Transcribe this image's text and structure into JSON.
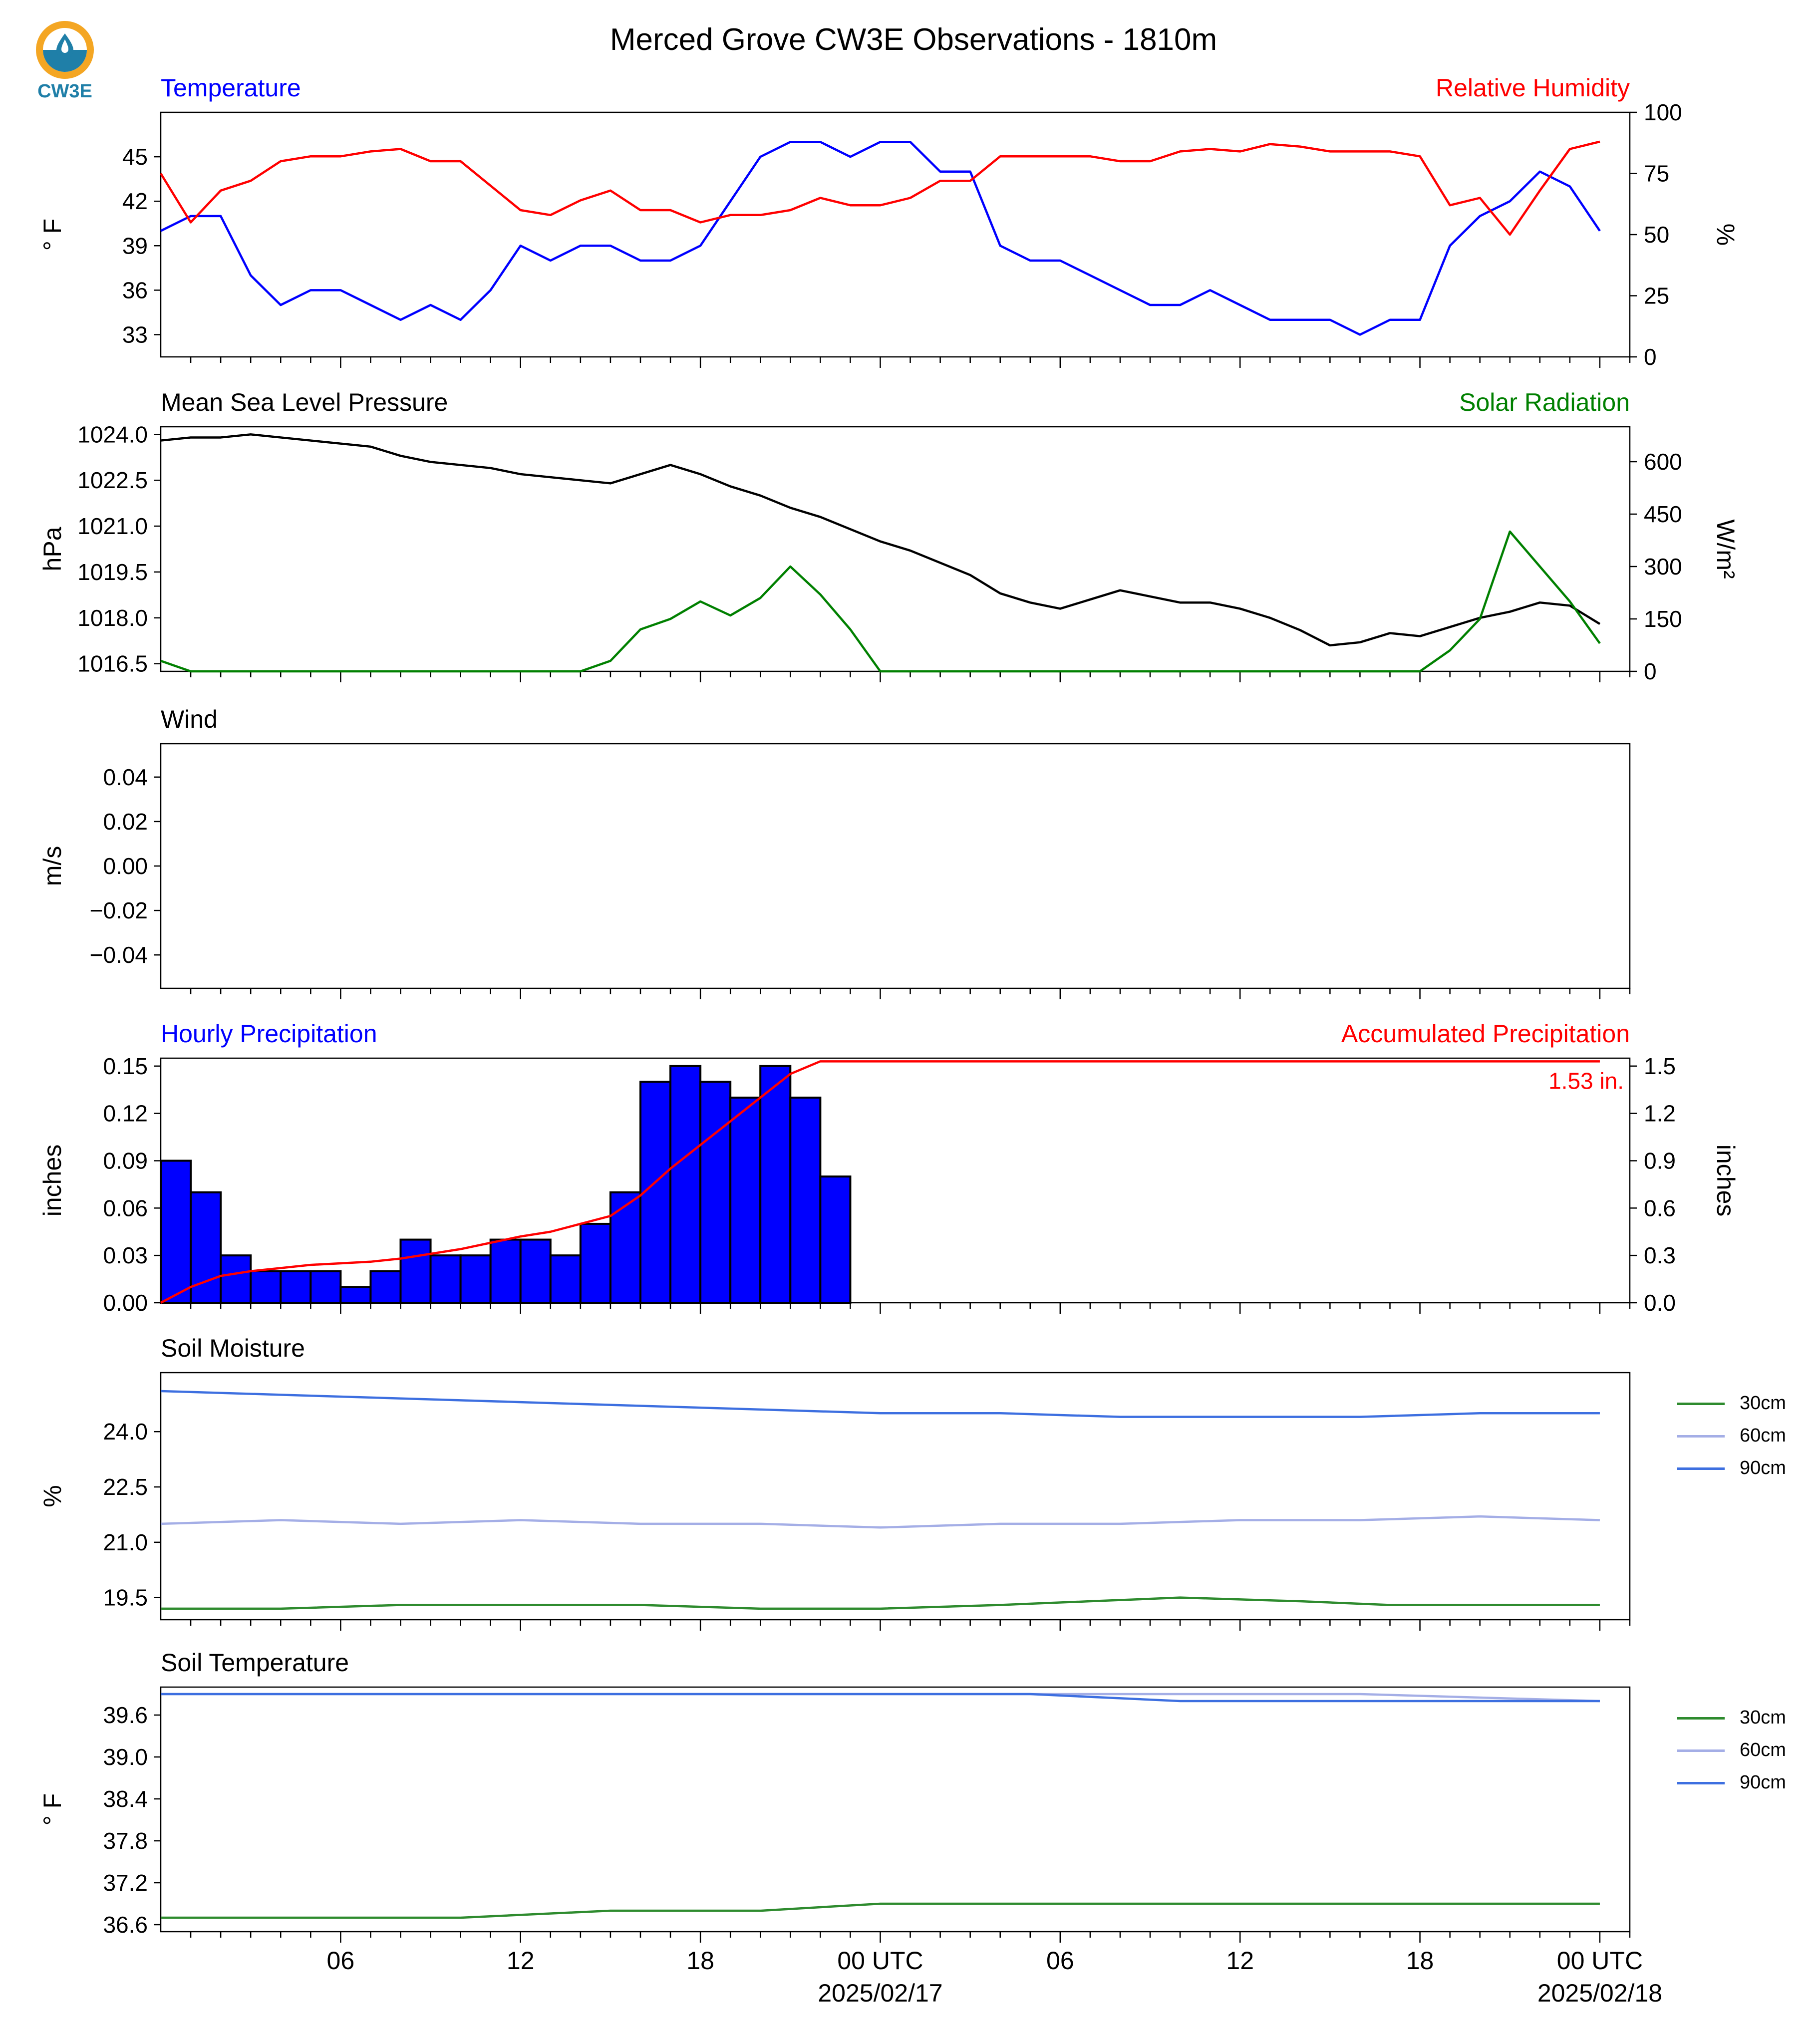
{
  "title": "Merced Grove CW3E Observations - 1810m",
  "logo": {
    "text": "CW3E",
    "icon": "water-drop-sun-icon",
    "colors": {
      "sun": "#f4a623",
      "water": "#1f7fa8"
    }
  },
  "colors": {
    "temperature": "#0000ff",
    "humidity": "#ff0000",
    "pressure": "#000000",
    "solar": "#008000",
    "bars": "#0000ff",
    "accum": "#ff0000",
    "soil30": "#2e8b2e",
    "soil60": "#a4aee6",
    "soil90": "#3d6fe0"
  },
  "x_axis": {
    "tick_labels": [
      "06",
      "12",
      "18",
      "00 UTC",
      "06",
      "12",
      "18",
      "00 UTC"
    ],
    "date_labels": [
      "2025/02/17",
      "2025/02/18"
    ]
  },
  "legend": [
    {
      "label": "30cm",
      "color": "#2e8b2e"
    },
    {
      "label": "60cm",
      "color": "#a4aee6"
    },
    {
      "label": "90cm",
      "color": "#3d6fe0"
    }
  ],
  "chart_data": [
    {
      "type": "line",
      "left_title": "Temperature",
      "right_title": "Relative Humidity",
      "ylabel": "° F",
      "ylabel_right": "%",
      "ylim": [
        31.5,
        48
      ],
      "ylim_right": [
        0,
        100
      ],
      "yticks": [
        "33",
        "36",
        "39",
        "42",
        "45"
      ],
      "yticks_right": [
        "0",
        "25",
        "50",
        "75",
        "100"
      ],
      "series": [
        {
          "name": "Temperature",
          "axis": "left",
          "color": "#0000ff",
          "x": [
            0,
            1,
            2,
            3,
            4,
            5,
            6,
            7,
            8,
            9,
            10,
            11,
            12,
            13,
            14,
            15,
            16,
            17,
            18,
            19,
            20,
            21,
            22,
            23,
            24,
            25,
            26,
            27,
            28,
            29,
            30,
            31,
            32,
            33,
            34,
            35,
            36,
            37,
            38,
            39,
            40,
            41,
            42,
            43,
            44,
            45,
            46,
            47,
            48
          ],
          "y": [
            40,
            41,
            41,
            37,
            35,
            36,
            36,
            35,
            34,
            35,
            34,
            36,
            39,
            38,
            39,
            39,
            38,
            38,
            39,
            42,
            45,
            46,
            46,
            45,
            46,
            46,
            44,
            44,
            39,
            38,
            38,
            37,
            36,
            35,
            35,
            36,
            35,
            34,
            34,
            34,
            33,
            34,
            34,
            39,
            41,
            42,
            44,
            43,
            40
          ]
        },
        {
          "name": "Relative Humidity",
          "axis": "right",
          "color": "#ff0000",
          "x": [
            0,
            1,
            2,
            3,
            4,
            5,
            6,
            7,
            8,
            9,
            10,
            11,
            12,
            13,
            14,
            15,
            16,
            17,
            18,
            19,
            20,
            21,
            22,
            23,
            24,
            25,
            26,
            27,
            28,
            29,
            30,
            31,
            32,
            33,
            34,
            35,
            36,
            37,
            38,
            39,
            40,
            41,
            42,
            43,
            44,
            45,
            46,
            47,
            48
          ],
          "y": [
            75,
            55,
            68,
            72,
            80,
            82,
            82,
            84,
            85,
            80,
            80,
            70,
            60,
            58,
            64,
            68,
            60,
            60,
            55,
            58,
            58,
            60,
            65,
            62,
            62,
            65,
            72,
            72,
            82,
            82,
            82,
            82,
            80,
            80,
            84,
            85,
            84,
            87,
            86,
            84,
            84,
            84,
            82,
            62,
            65,
            50,
            68,
            85,
            88
          ]
        }
      ]
    },
    {
      "type": "line",
      "left_title": "Mean Sea Level Pressure",
      "right_title": "Solar Radiation",
      "ylabel": "hPa",
      "ylabel_right": "W/m²",
      "ylim": [
        1016.25,
        1024.25
      ],
      "ylim_right": [
        0,
        700
      ],
      "yticks": [
        "1016.5",
        "1018.0",
        "1019.5",
        "1021.0",
        "1022.5",
        "1024.0"
      ],
      "yticks_right": [
        "0",
        "150",
        "300",
        "450",
        "600"
      ],
      "series": [
        {
          "name": "Mean Sea Level Pressure",
          "axis": "left",
          "color": "#000000",
          "x": [
            0,
            1,
            2,
            3,
            4,
            5,
            6,
            7,
            8,
            9,
            10,
            11,
            12,
            13,
            14,
            15,
            16,
            17,
            18,
            19,
            20,
            21,
            22,
            23,
            24,
            25,
            26,
            27,
            28,
            29,
            30,
            31,
            32,
            33,
            34,
            35,
            36,
            37,
            38,
            39,
            40,
            41,
            42,
            43,
            44,
            45,
            46,
            47,
            48
          ],
          "y": [
            1023.8,
            1023.9,
            1023.9,
            1024.0,
            1023.9,
            1023.8,
            1023.7,
            1023.6,
            1023.3,
            1023.1,
            1023.0,
            1022.9,
            1022.7,
            1022.6,
            1022.5,
            1022.4,
            1022.7,
            1023.0,
            1022.7,
            1022.3,
            1022.0,
            1021.6,
            1021.3,
            1020.9,
            1020.5,
            1020.2,
            1019.8,
            1019.4,
            1018.8,
            1018.5,
            1018.3,
            1018.6,
            1018.9,
            1018.7,
            1018.5,
            1018.5,
            1018.3,
            1018.0,
            1017.6,
            1017.1,
            1017.2,
            1017.5,
            1017.4,
            1017.7,
            1018.0,
            1018.2,
            1018.5,
            1018.4,
            1017.8
          ]
        },
        {
          "name": "Solar Radiation",
          "axis": "right",
          "color": "#008000",
          "x": [
            0,
            1,
            2,
            3,
            4,
            5,
            6,
            7,
            8,
            9,
            10,
            11,
            12,
            13,
            14,
            15,
            16,
            17,
            18,
            19,
            20,
            21,
            22,
            23,
            24,
            25,
            26,
            27,
            28,
            29,
            30,
            31,
            32,
            33,
            34,
            35,
            36,
            37,
            38,
            39,
            40,
            41,
            42,
            43,
            44,
            45,
            46,
            47,
            48
          ],
          "y": [
            30,
            0,
            0,
            0,
            0,
            0,
            0,
            0,
            0,
            0,
            0,
            0,
            0,
            0,
            0,
            30,
            120,
            150,
            200,
            160,
            210,
            300,
            220,
            120,
            0,
            0,
            0,
            0,
            0,
            0,
            0,
            0,
            0,
            0,
            0,
            0,
            0,
            0,
            0,
            0,
            0,
            0,
            0,
            60,
            150,
            400,
            300,
            200,
            80
          ]
        }
      ]
    },
    {
      "type": "line",
      "left_title": "Wind",
      "ylabel": "m/s",
      "ylim": [
        -0.055,
        0.055
      ],
      "yticks": [
        "−0.04",
        "−0.02",
        "0.00",
        "0.02",
        "0.04"
      ],
      "series": []
    },
    {
      "type": "bar",
      "left_title": "Hourly Precipitation",
      "right_title": "Accumulated Precipitation",
      "annotation": "1.53 in.",
      "ylabel": "inches",
      "ylabel_right": "inches",
      "ylim": [
        0,
        0.155
      ],
      "ylim_right": [
        0,
        1.55
      ],
      "yticks": [
        "0.00",
        "0.03",
        "0.06",
        "0.09",
        "0.12",
        "0.15"
      ],
      "yticks_right": [
        "0.0",
        "0.3",
        "0.6",
        "0.9",
        "1.2",
        "1.5"
      ],
      "series": [
        {
          "name": "Hourly Precipitation",
          "axis": "left",
          "color": "#0000ff",
          "x": [
            0,
            1,
            2,
            3,
            4,
            5,
            6,
            7,
            8,
            9,
            10,
            11,
            12,
            13,
            14,
            15,
            16,
            17,
            18,
            19,
            20,
            21,
            22
          ],
          "values": [
            0.09,
            0.07,
            0.03,
            0.02,
            0.02,
            0.02,
            0.01,
            0.02,
            0.04,
            0.03,
            0.03,
            0.04,
            0.04,
            0.03,
            0.05,
            0.07,
            0.14,
            0.15,
            0.14,
            0.13,
            0.15,
            0.13,
            0.08
          ]
        },
        {
          "name": "Accumulated Precipitation",
          "axis": "right",
          "color": "#ff0000",
          "x": [
            0,
            1,
            2,
            3,
            4,
            5,
            6,
            7,
            8,
            9,
            10,
            11,
            12,
            13,
            14,
            15,
            16,
            17,
            18,
            19,
            20,
            21,
            22,
            23,
            24,
            25,
            26,
            27,
            28,
            29,
            30,
            31,
            32,
            33,
            34,
            35,
            36,
            37,
            38,
            39,
            40,
            41,
            42,
            43,
            44,
            45,
            46,
            47,
            48
          ],
          "y": [
            0.0,
            0.1,
            0.17,
            0.2,
            0.22,
            0.24,
            0.25,
            0.26,
            0.28,
            0.31,
            0.34,
            0.38,
            0.42,
            0.45,
            0.5,
            0.55,
            0.68,
            0.85,
            1.0,
            1.15,
            1.3,
            1.45,
            1.53,
            1.53,
            1.53,
            1.53,
            1.53,
            1.53,
            1.53,
            1.53,
            1.53,
            1.53,
            1.53,
            1.53,
            1.53,
            1.53,
            1.53,
            1.53,
            1.53,
            1.53,
            1.53,
            1.53,
            1.53,
            1.53,
            1.53,
            1.53,
            1.53,
            1.53,
            1.53
          ]
        }
      ]
    },
    {
      "type": "line",
      "left_title": "Soil Moisture",
      "ylabel": "%",
      "ylim": [
        18.9,
        25.6
      ],
      "yticks": [
        "19.5",
        "21.0",
        "22.5",
        "24.0"
      ],
      "series": [
        {
          "name": "30cm",
          "color": "#2e8b2e",
          "x": [
            0,
            4,
            8,
            12,
            16,
            20,
            24,
            28,
            31,
            34,
            38,
            41,
            45,
            48
          ],
          "y": [
            19.2,
            19.2,
            19.3,
            19.3,
            19.3,
            19.2,
            19.2,
            19.3,
            19.4,
            19.5,
            19.4,
            19.3,
            19.3,
            19.3
          ]
        },
        {
          "name": "60cm",
          "color": "#a4aee6",
          "x": [
            0,
            4,
            8,
            12,
            16,
            20,
            24,
            28,
            32,
            36,
            40,
            44,
            48
          ],
          "y": [
            21.5,
            21.6,
            21.5,
            21.6,
            21.5,
            21.5,
            21.4,
            21.5,
            21.5,
            21.6,
            21.6,
            21.7,
            21.6
          ]
        },
        {
          "name": "90cm",
          "color": "#3d6fe0",
          "x": [
            0,
            4,
            8,
            12,
            16,
            20,
            24,
            28,
            32,
            36,
            40,
            44,
            48
          ],
          "y": [
            25.1,
            25.0,
            24.9,
            24.8,
            24.7,
            24.6,
            24.5,
            24.5,
            24.4,
            24.4,
            24.4,
            24.5,
            24.5
          ]
        }
      ]
    },
    {
      "type": "line",
      "left_title": "Soil Temperature",
      "ylabel": "° F",
      "ylim": [
        36.5,
        40.0
      ],
      "yticks": [
        "36.6",
        "37.2",
        "37.8",
        "38.4",
        "39.0",
        "39.6"
      ],
      "series": [
        {
          "name": "30cm",
          "color": "#2e8b2e",
          "x": [
            0,
            10,
            15,
            20,
            24,
            30,
            36,
            42,
            48
          ],
          "y": [
            36.7,
            36.7,
            36.8,
            36.8,
            36.9,
            36.9,
            36.9,
            36.9,
            36.9
          ]
        },
        {
          "name": "60cm",
          "color": "#a4aee6",
          "x": [
            0,
            24,
            30,
            40,
            48
          ],
          "y": [
            39.9,
            39.9,
            39.9,
            39.9,
            39.8
          ]
        },
        {
          "name": "90cm",
          "color": "#3d6fe0",
          "x": [
            0,
            24,
            29,
            34,
            48
          ],
          "y": [
            39.9,
            39.9,
            39.9,
            39.8,
            39.8
          ]
        }
      ]
    }
  ]
}
